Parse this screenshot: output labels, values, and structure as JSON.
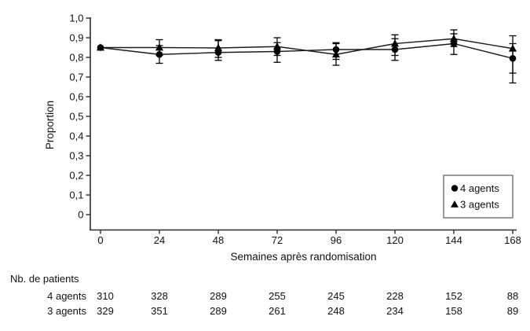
{
  "chart_data": {
    "type": "line",
    "title": "",
    "xlabel": "Semaines après randomisation",
    "ylabel": "Proportion",
    "x": [
      0,
      24,
      48,
      72,
      96,
      120,
      144,
      168
    ],
    "xlim": [
      0,
      168
    ],
    "ylim": [
      0,
      1.0
    ],
    "ytick_labels": [
      "0",
      "0,1",
      "0,2",
      "0,3",
      "0,4",
      "0,5",
      "0,6",
      "0,7",
      "0,8",
      "0,9",
      "1,0"
    ],
    "grid": false,
    "legend_position": "bottom-right",
    "series": [
      {
        "name": "4 agents",
        "marker": "circle",
        "values": [
          0.85,
          0.815,
          0.825,
          0.83,
          0.84,
          0.84,
          0.87,
          0.795
        ],
        "err_lo": [
          0.85,
          0.77,
          0.785,
          0.775,
          0.79,
          0.785,
          0.815,
          0.67
        ],
        "err_hi": [
          0.85,
          0.86,
          0.89,
          0.875,
          0.875,
          0.895,
          0.92,
          0.87
        ]
      },
      {
        "name": "3 agents",
        "marker": "triangle",
        "values": [
          0.85,
          0.85,
          0.848,
          0.855,
          0.815,
          0.87,
          0.895,
          0.845
        ],
        "err_lo": [
          0.85,
          0.81,
          0.8,
          0.81,
          0.76,
          0.81,
          0.855,
          0.72
        ],
        "err_hi": [
          0.85,
          0.89,
          0.885,
          0.9,
          0.87,
          0.915,
          0.94,
          0.91
        ]
      }
    ],
    "colors": {
      "line": "#1c1c1c",
      "marker": "#000000",
      "axis": "#2b2b2b",
      "legend_border": "#5a5a5a",
      "text": "#111111"
    }
  },
  "patients_table": {
    "title": "Nb. de patients",
    "rows": [
      {
        "label": "4 agents",
        "values": [
          "310",
          "328",
          "289",
          "255",
          "245",
          "228",
          "152",
          "88"
        ]
      },
      {
        "label": "3 agents",
        "values": [
          "329",
          "351",
          "289",
          "261",
          "248",
          "234",
          "158",
          "89"
        ]
      }
    ]
  }
}
